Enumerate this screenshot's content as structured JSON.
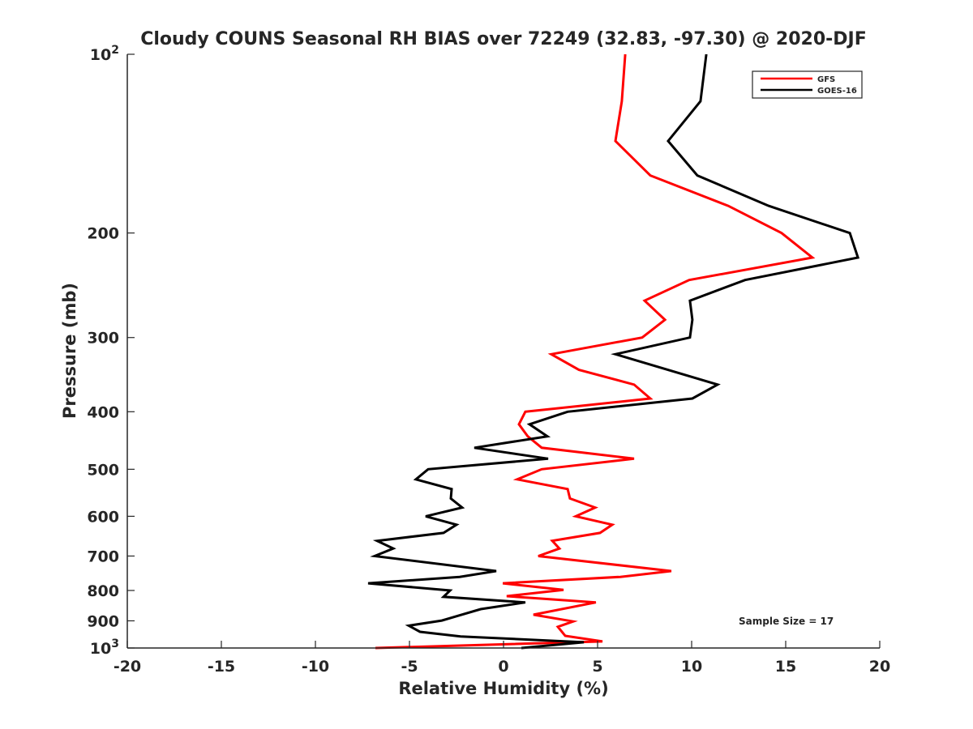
{
  "chart_data": {
    "type": "line",
    "title": "Cloudy COUNS Seasonal RH BIAS over 72249 (32.83, -97.30) @ 2020-DJF",
    "xlabel": "Relative Humidity (%)",
    "ylabel": "Pressure (mb)",
    "xlim": [
      -20,
      20
    ],
    "ylim": [
      100,
      1000
    ],
    "yscale": "log",
    "y_reversed": true,
    "xticks": [
      "-20",
      "-15",
      "-10",
      "-5",
      "0",
      "5",
      "10",
      "15",
      "20"
    ],
    "xtick_values": [
      -20,
      -15,
      -10,
      -5,
      0,
      5,
      10,
      15,
      20
    ],
    "yticks": [
      {
        "value": 100,
        "base": "10",
        "exp": "2"
      },
      {
        "value": 200,
        "label": "200"
      },
      {
        "value": 300,
        "label": "300"
      },
      {
        "value": 400,
        "label": "400"
      },
      {
        "value": 500,
        "label": "500"
      },
      {
        "value": 600,
        "label": "600"
      },
      {
        "value": 700,
        "label": "700"
      },
      {
        "value": 800,
        "label": "800"
      },
      {
        "value": 900,
        "label": "900"
      },
      {
        "value": 1000,
        "base": "10",
        "exp": "3"
      }
    ],
    "legend_position": "top-right",
    "annotation": "Sample Size = 17",
    "series": [
      {
        "name": "GFS",
        "color": "#ff0000",
        "pressure": [
          100,
          120,
          140,
          160,
          180,
          200,
          220,
          240,
          260,
          280,
          300,
          320,
          340,
          360,
          380,
          400,
          420,
          440,
          460,
          480,
          500,
          520,
          540,
          560,
          580,
          600,
          620,
          640,
          660,
          680,
          700,
          742,
          759,
          778,
          798,
          818,
          838,
          879,
          902,
          921,
          954,
          975,
          1000
        ],
        "rh": [
          6.47,
          6.29,
          5.95,
          7.8,
          11.94,
          14.78,
          16.42,
          9.87,
          7.5,
          8.58,
          7.37,
          2.54,
          4.01,
          6.94,
          7.8,
          1.16,
          0.82,
          1.29,
          2.03,
          6.94,
          2.03,
          0.73,
          3.41,
          3.53,
          4.87,
          3.84,
          5.78,
          5.13,
          2.59,
          2.97,
          1.85,
          8.92,
          6.21,
          -0.04,
          3.19,
          0.17,
          4.91,
          1.59,
          3.7,
          2.89,
          3.28,
          5.26,
          -6.81
        ]
      },
      {
        "name": "GOES-16",
        "color": "#000000",
        "pressure": [
          100,
          120,
          140,
          160,
          180,
          200,
          220,
          240,
          260,
          280,
          300,
          320,
          360,
          380,
          400,
          420,
          440,
          460,
          480,
          500,
          520,
          540,
          560,
          580,
          600,
          620,
          640,
          660,
          680,
          700,
          742,
          759,
          778,
          800,
          820,
          838,
          860,
          899,
          917,
          939,
          956,
          978,
          1000
        ],
        "rh": [
          10.78,
          10.47,
          8.75,
          10.3,
          14.09,
          18.41,
          18.84,
          12.84,
          9.91,
          10.04,
          9.91,
          5.95,
          11.38,
          10.04,
          3.41,
          1.38,
          2.33,
          -1.55,
          2.37,
          -4.01,
          -4.66,
          -2.76,
          -2.8,
          -2.2,
          -4.14,
          -2.5,
          -3.19,
          -6.72,
          -5.86,
          -6.85,
          -0.39,
          -2.33,
          -7.2,
          -2.84,
          -3.19,
          1.16,
          -1.21,
          -3.28,
          -5.04,
          -4.44,
          -2.28,
          4.27,
          0.95
        ]
      }
    ]
  }
}
